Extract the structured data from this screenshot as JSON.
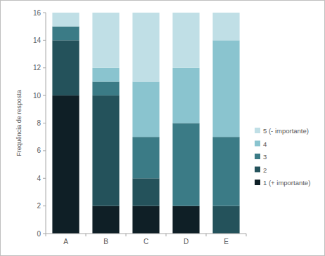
{
  "chart_data": {
    "type": "bar",
    "stacked": true,
    "y_label": "Frequência de resposta",
    "categories": [
      "A",
      "B",
      "C",
      "D",
      "E"
    ],
    "series": [
      {
        "name": "1 (+ importante)",
        "color": "#0f1f26",
        "values": [
          10,
          2,
          2,
          2,
          0
        ]
      },
      {
        "name": "2",
        "color": "#24525b",
        "values": [
          4,
          8,
          2,
          0,
          2
        ]
      },
      {
        "name": "3",
        "color": "#3b7b86",
        "values": [
          1,
          1,
          3,
          6,
          5
        ]
      },
      {
        "name": "4",
        "color": "#8ac4cf",
        "values": [
          0,
          1,
          4,
          4,
          7
        ]
      },
      {
        "name": "5 (- importante)",
        "color": "#c0dfe6",
        "values": [
          1,
          4,
          5,
          4,
          2
        ]
      }
    ],
    "ylim": [
      0,
      16
    ],
    "yticks": [
      0,
      2,
      4,
      6,
      8,
      10,
      12,
      14,
      16
    ],
    "grid": false,
    "legend": "right"
  }
}
